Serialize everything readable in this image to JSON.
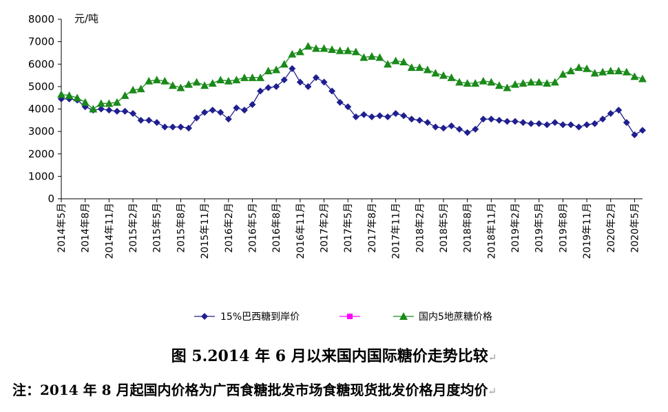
{
  "chart_data": {
    "type": "line",
    "unit_label": "元/吨",
    "ylim": [
      0,
      8000
    ],
    "y_ticks": [
      0,
      1000,
      2000,
      3000,
      4000,
      5000,
      6000,
      7000,
      8000
    ],
    "tick_labels": [
      "2014年5月",
      "2014年8月",
      "2014年11月",
      "2015年2月",
      "2015年5月",
      "2015年8月",
      "2015年11月",
      "2016年2月",
      "2016年5月",
      "2016年8月",
      "2016年11月",
      "2017年2月",
      "2017年5月",
      "2017年8月",
      "2017年11月",
      "2018年2月",
      "2018年5月",
      "2018年8月",
      "2018年11月",
      "2019年2月",
      "2019年5月",
      "2019年8月",
      "2019年11月",
      "2020年2月",
      "2020年5月"
    ],
    "legend_placement": "bottom",
    "grid": false,
    "series": [
      {
        "name": "15%巴西糖到岸价",
        "color": "#1f1f8f",
        "marker": "diamond",
        "values": [
          4450,
          4450,
          4400,
          4100,
          3950,
          4000,
          3950,
          3900,
          3900,
          3800,
          3500,
          3500,
          3400,
          3200,
          3200,
          3200,
          3150,
          3600,
          3850,
          3950,
          3850,
          3550,
          4050,
          3950,
          4200,
          4800,
          4950,
          5000,
          5300,
          5800,
          5200,
          5000,
          5400,
          5200,
          4800,
          4300,
          4100,
          3650,
          3750,
          3650,
          3700,
          3650,
          3800,
          3700,
          3550,
          3500,
          3400,
          3200,
          3150,
          3250,
          3100,
          2950,
          3100,
          3550,
          3550,
          3500,
          3450,
          3450,
          3400,
          3350,
          3350,
          3300,
          3400,
          3300,
          3300,
          3200,
          3300,
          3350,
          3550,
          3800,
          3950,
          3400,
          2850,
          3050
        ]
      },
      {
        "name": "",
        "color": "#ff00ff",
        "marker": "square",
        "values": []
      },
      {
        "name": "国内5地蔗糖价格",
        "color": "#1a8a1a",
        "marker": "triangle",
        "values": [
          4650,
          4600,
          4500,
          4300,
          4000,
          4250,
          4250,
          4300,
          4600,
          4850,
          4900,
          5250,
          5300,
          5250,
          5050,
          4950,
          5100,
          5200,
          5050,
          5150,
          5300,
          5250,
          5300,
          5400,
          5400,
          5400,
          5700,
          5750,
          6000,
          6450,
          6550,
          6800,
          6700,
          6700,
          6650,
          6600,
          6600,
          6550,
          6300,
          6350,
          6300,
          6000,
          6150,
          6100,
          5850,
          5850,
          5750,
          5600,
          5500,
          5400,
          5200,
          5150,
          5150,
          5250,
          5200,
          5050,
          4950,
          5100,
          5150,
          5200,
          5200,
          5150,
          5200,
          5550,
          5700,
          5850,
          5800,
          5600,
          5650,
          5700,
          5700,
          5650,
          5450,
          5350
        ]
      }
    ]
  },
  "caption": {
    "title": "图 5.2014 年 6 月以来国内国际糖价走势比较",
    "note": "注：2014 年 8 月起国内价格为广西食糖批发市场食糖现货批发价格月度均价",
    "para_mark": "↵"
  }
}
